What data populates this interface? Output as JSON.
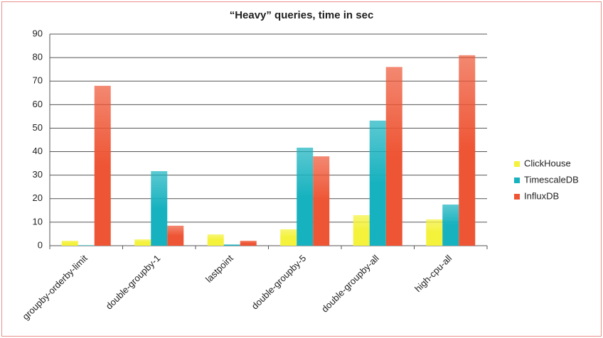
{
  "chart_data": {
    "type": "bar",
    "title": "“Heavy” queries, time in sec",
    "categories": [
      "groupby-orderby-limit",
      "double-groupby-1",
      "lastpoint",
      "double-groupby-5",
      "double-groupby-all",
      "high-cpu-all"
    ],
    "series": [
      {
        "name": "ClickHouse",
        "color": "#f4f23a",
        "values": [
          2.1,
          2.7,
          4.8,
          7,
          13,
          11.2
        ]
      },
      {
        "name": "TimescaleDB",
        "color": "#17b2bf",
        "values": [
          0.2,
          31.7,
          0.5,
          41.7,
          53.2,
          17.5
        ]
      },
      {
        "name": "InfluxDB",
        "color": "#ee5534",
        "values": [
          68,
          8.5,
          2.1,
          38,
          76,
          81
        ]
      }
    ],
    "ylim": [
      0,
      90
    ],
    "yticks": [
      0,
      10,
      20,
      30,
      40,
      50,
      60,
      70,
      80,
      90
    ],
    "grid": true,
    "legend": "right"
  }
}
